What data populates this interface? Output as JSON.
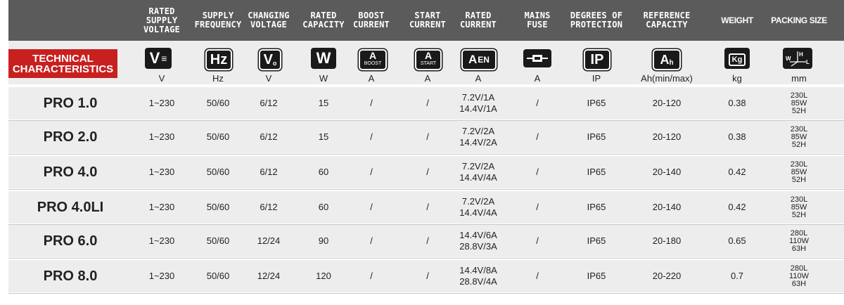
{
  "header": {
    "columns": [
      {
        "key": "voltage",
        "lines": [
          "RATED",
          "SUPPLY",
          "VOLTAGE"
        ]
      },
      {
        "key": "frequency",
        "lines": [
          "SUPPLY",
          "FREQUENCY"
        ]
      },
      {
        "key": "changing_voltage",
        "lines": [
          "CHANGING",
          "VOLTAGE"
        ]
      },
      {
        "key": "rated_capacity",
        "lines": [
          "RATED",
          "CAPACITY"
        ]
      },
      {
        "key": "boost_current",
        "lines": [
          "BOOST",
          "CURRENT"
        ]
      },
      {
        "key": "start_current",
        "lines": [
          "START",
          "CURRENT"
        ]
      },
      {
        "key": "rated_current",
        "lines": [
          "RATED",
          "CURRENT"
        ]
      },
      {
        "key": "mains_fuse",
        "lines": [
          "MAINS",
          "FUSE"
        ]
      },
      {
        "key": "protection",
        "lines": [
          "DEGREES OF",
          "PROTECTION"
        ]
      },
      {
        "key": "reference_capacity",
        "lines": [
          "REFERENCE",
          "CAPACITY"
        ]
      },
      {
        "key": "weight",
        "lines": [
          "WEIGHT"
        ]
      },
      {
        "key": "packing_size",
        "lines": [
          "PACKING SIZE"
        ]
      }
    ]
  },
  "badge": {
    "line1": "TECHNICAL",
    "line2": "CHARACTERISTICS",
    "color": "#c8201f"
  },
  "icons": {
    "voltage": {
      "name": "voltage-icon",
      "text": "V"
    },
    "frequency": {
      "name": "frequency-icon",
      "text": "Hz"
    },
    "changing_voltage": {
      "name": "output-voltage-icon",
      "text": "V"
    },
    "rated_capacity": {
      "name": "watt-icon",
      "text": "W"
    },
    "boost_current": {
      "name": "boost-current-icon",
      "main": "A",
      "sub": "BOOST"
    },
    "start_current": {
      "name": "start-current-icon",
      "main": "A",
      "sub": "START"
    },
    "rated_current": {
      "name": "rated-current-icon",
      "main": "A",
      "sub": "EN"
    },
    "mains_fuse": {
      "name": "fuse-icon"
    },
    "protection": {
      "name": "ip-icon",
      "text": "IP"
    },
    "reference_capacity": {
      "name": "amp-hour-icon",
      "main": "A",
      "sub": "h"
    },
    "weight": {
      "name": "weight-icon",
      "text": "Kg"
    },
    "packing_size": {
      "name": "dimensions-icon",
      "h": "H",
      "w": "W",
      "l": "L"
    }
  },
  "units": [
    "V",
    "Hz",
    "V",
    "W",
    "A",
    "A",
    "A",
    "A",
    "IP",
    "Ah(min/max)",
    "kg",
    "mm"
  ],
  "rows": [
    {
      "model": "PRO 1.0",
      "voltage": "1~230",
      "frequency": "50/60",
      "changing_voltage": "6/12",
      "rated_capacity": "15",
      "boost": "/",
      "start": "/",
      "rated_current_1": "7.2V/1A",
      "rated_current_2": "14.4V/1A",
      "fuse": "/",
      "ip": "IP65",
      "ref_capacity": "20-120",
      "weight": "0.38",
      "pack_l": "230L",
      "pack_w": "85W",
      "pack_h": "52H"
    },
    {
      "model": "PRO 2.0",
      "voltage": "1~230",
      "frequency": "50/60",
      "changing_voltage": "6/12",
      "rated_capacity": "15",
      "boost": "/",
      "start": "/",
      "rated_current_1": "7.2V/2A",
      "rated_current_2": "14.4V/2A",
      "fuse": "/",
      "ip": "IP65",
      "ref_capacity": "20-120",
      "weight": "0.38",
      "pack_l": "230L",
      "pack_w": "85W",
      "pack_h": "52H"
    },
    {
      "model": "PRO 4.0",
      "voltage": "1~230",
      "frequency": "50/60",
      "changing_voltage": "6/12",
      "rated_capacity": "60",
      "boost": "/",
      "start": "/",
      "rated_current_1": "7.2V/2A",
      "rated_current_2": "14.4V/4A",
      "fuse": "/",
      "ip": "IP65",
      "ref_capacity": "20-140",
      "weight": "0.42",
      "pack_l": "230L",
      "pack_w": "85W",
      "pack_h": "52H"
    },
    {
      "model": "PRO 4.0LI",
      "voltage": "1~230",
      "frequency": "50/60",
      "changing_voltage": "6/12",
      "rated_capacity": "60",
      "boost": "/",
      "start": "/",
      "rated_current_1": "7.2V/2A",
      "rated_current_2": "14.4V/4A",
      "fuse": "/",
      "ip": "IP65",
      "ref_capacity": "20-140",
      "weight": "0.42",
      "pack_l": "230L",
      "pack_w": "85W",
      "pack_h": "52H"
    },
    {
      "model": "PRO 6.0",
      "voltage": "1~230",
      "frequency": "50/60",
      "changing_voltage": "12/24",
      "rated_capacity": "90",
      "boost": "/",
      "start": "/",
      "rated_current_1": "14.4V/6A",
      "rated_current_2": "28.8V/3A",
      "fuse": "/",
      "ip": "IP65",
      "ref_capacity": "20-180",
      "weight": "0.65",
      "pack_l": "280L",
      "pack_w": "110W",
      "pack_h": "63H"
    },
    {
      "model": "PRO 8.0",
      "voltage": "1~230",
      "frequency": "50/60",
      "changing_voltage": "12/24",
      "rated_capacity": "120",
      "boost": "/",
      "start": "/",
      "rated_current_1": "14.4V/8A",
      "rated_current_2": "28.8V/4A",
      "fuse": "/",
      "ip": "IP65",
      "ref_capacity": "20-220",
      "weight": "0.7",
      "pack_l": "280L",
      "pack_w": "110W",
      "pack_h": "63H"
    }
  ]
}
